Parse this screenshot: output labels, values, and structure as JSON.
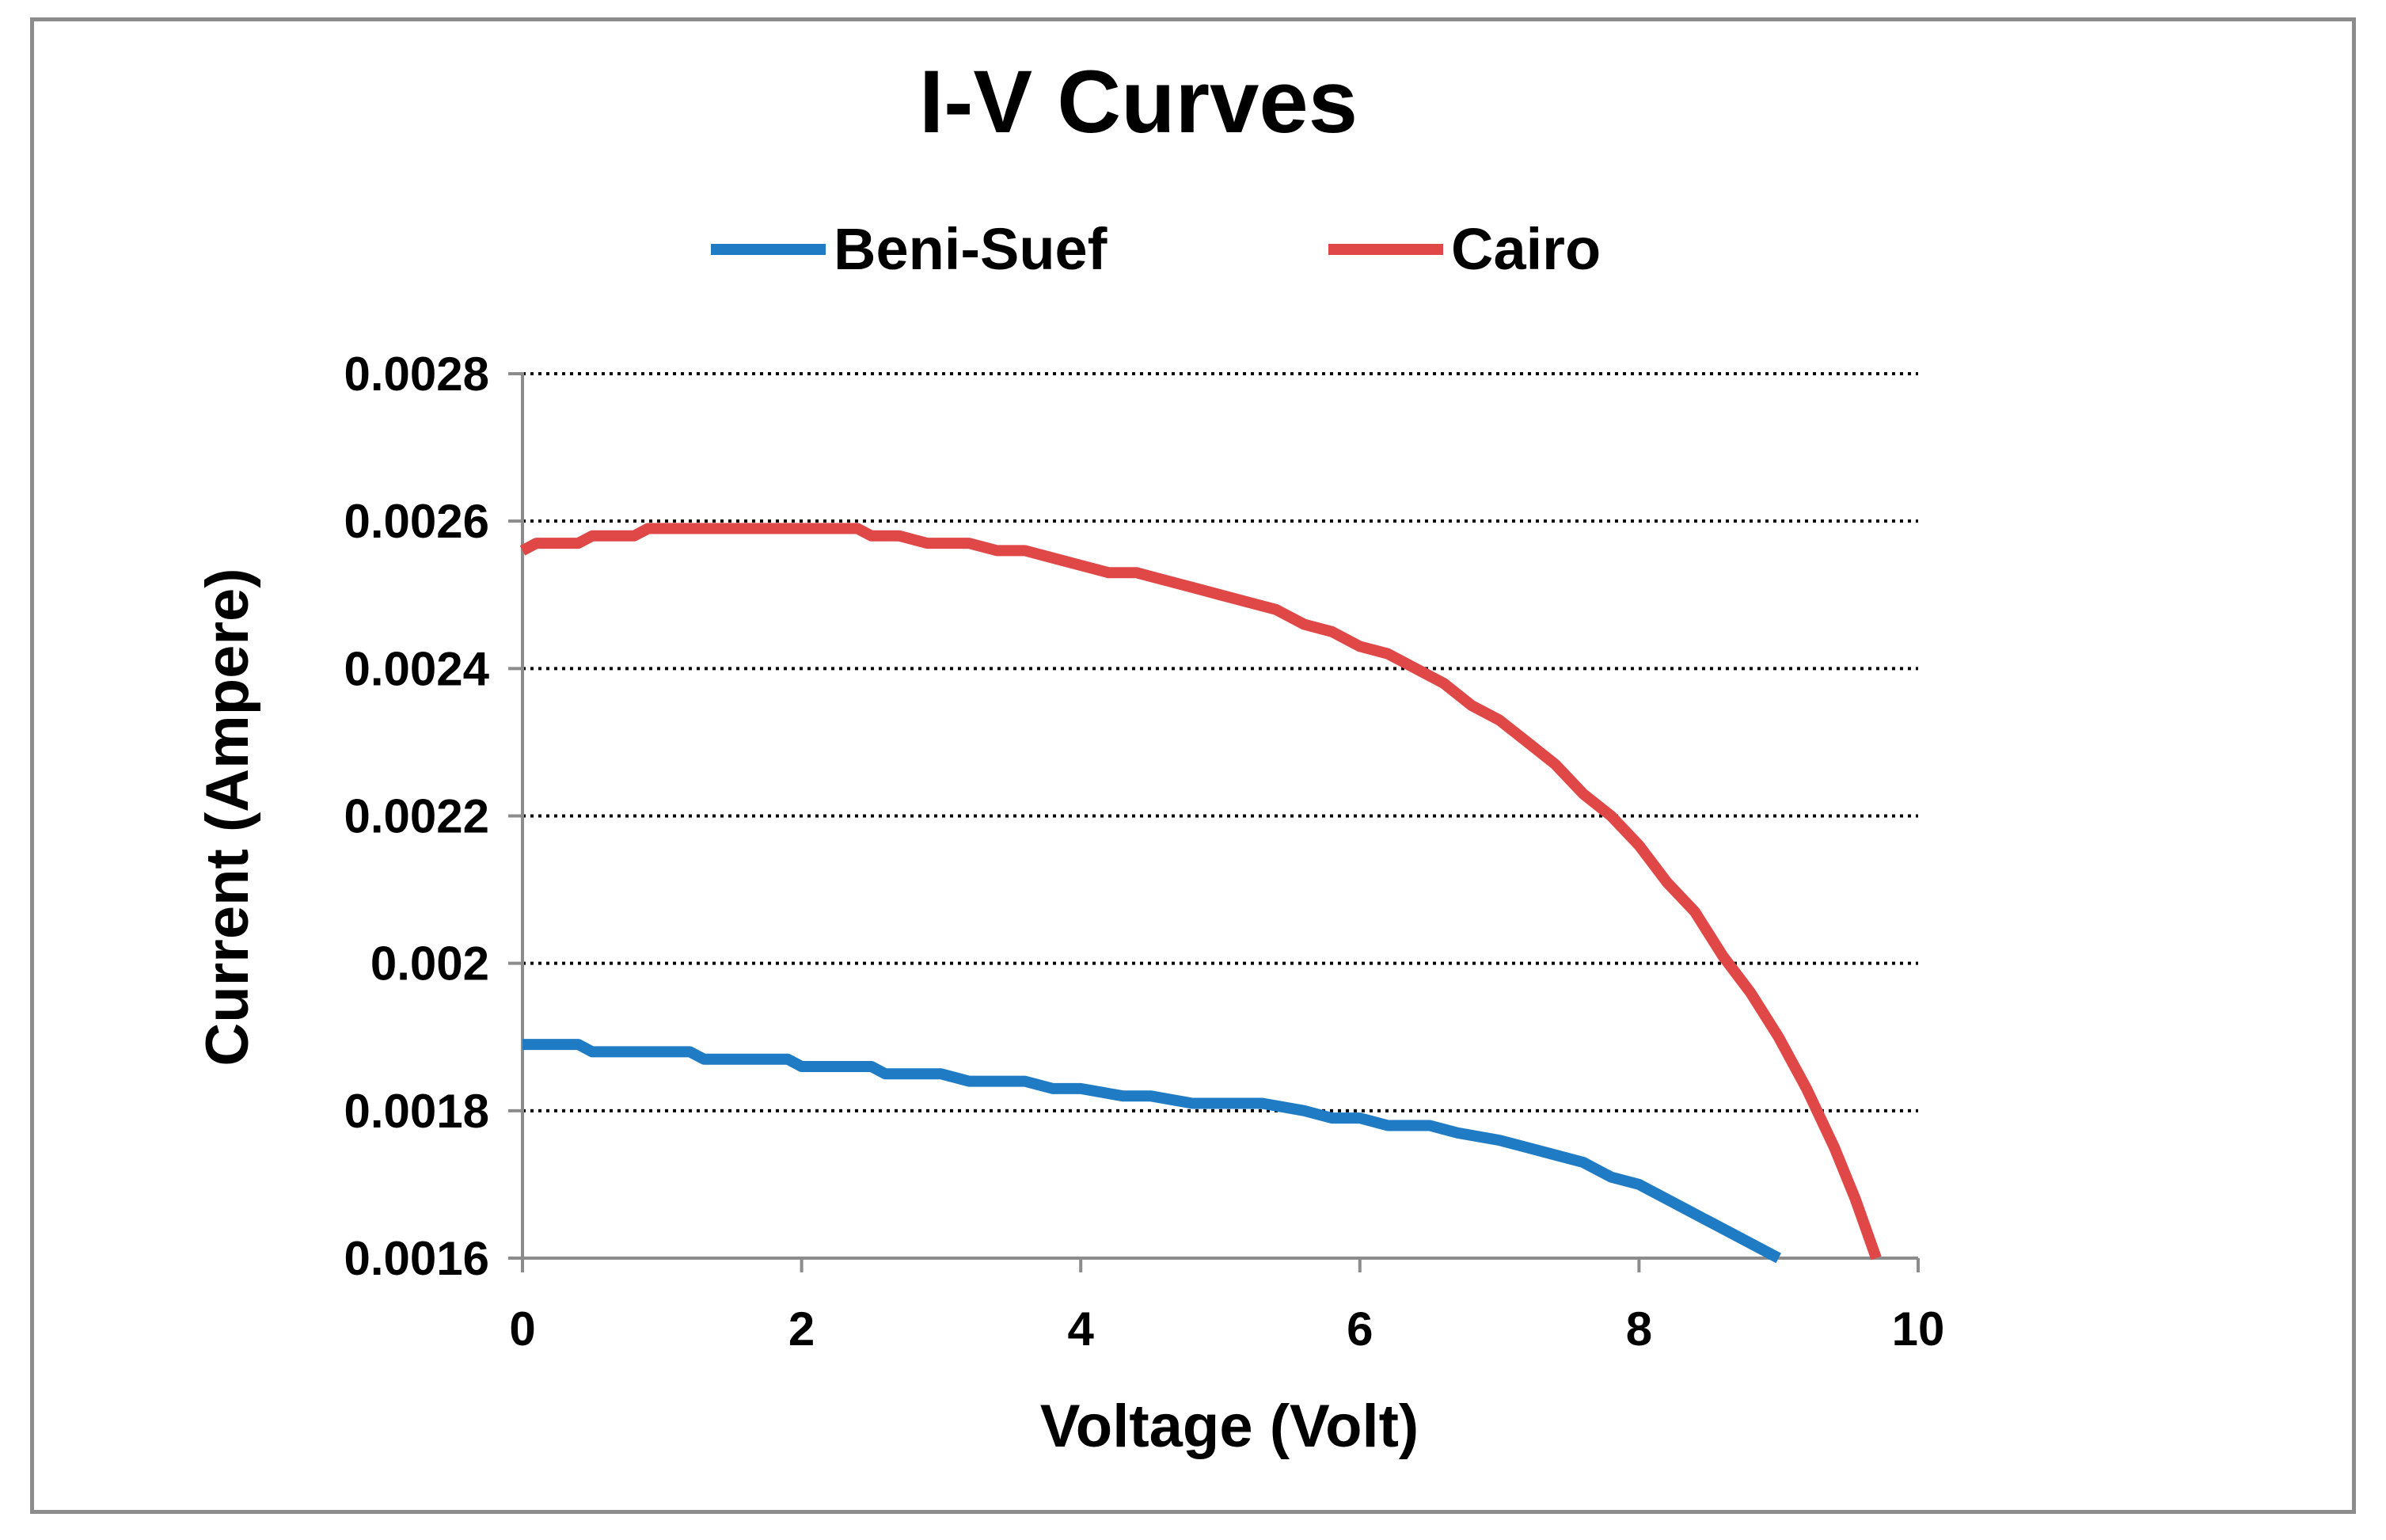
{
  "chart_data": {
    "type": "line",
    "title": "I-V Curves",
    "xlabel": "Voltage (Volt)",
    "ylabel": "Current (Ampere)",
    "xlim": [
      0,
      10
    ],
    "ylim": [
      0.0016,
      0.0028
    ],
    "x_ticks": [
      "0",
      "2",
      "4",
      "6",
      "8",
      "10"
    ],
    "y_ticks": [
      "0.0016",
      "0.0018",
      "0.002",
      "0.0022",
      "0.0024",
      "0.0026",
      "0.0028"
    ],
    "grid": "horizontal dotted",
    "legend_position": "top",
    "series": [
      {
        "name": "Beni-Suef",
        "color": "#1f7cc4",
        "x": [
          0,
          0.2,
          0.4,
          0.5,
          0.8,
          1.2,
          1.3,
          1.6,
          1.9,
          2.0,
          2.2,
          2.5,
          2.6,
          3.0,
          3.2,
          3.3,
          3.6,
          3.8,
          4.0,
          4.3,
          4.5,
          4.8,
          5.0,
          5.3,
          5.6,
          5.8,
          6.0,
          6.2,
          6.5,
          6.7,
          7.0,
          7.2,
          7.4,
          7.6,
          7.8,
          8.0,
          8.5,
          9.0
        ],
        "y": [
          0.00189,
          0.00189,
          0.00189,
          0.00188,
          0.00188,
          0.00188,
          0.00187,
          0.00187,
          0.00187,
          0.00186,
          0.00186,
          0.00186,
          0.00185,
          0.00185,
          0.00184,
          0.00184,
          0.00184,
          0.00183,
          0.00183,
          0.00182,
          0.00182,
          0.00181,
          0.00181,
          0.00181,
          0.0018,
          0.00179,
          0.00179,
          0.00178,
          0.00178,
          0.00177,
          0.00176,
          0.00175,
          0.00174,
          0.00173,
          0.00171,
          0.0017,
          0.00165,
          0.0016
        ]
      },
      {
        "name": "Cairo",
        "color": "#e04848",
        "x": [
          0,
          0.1,
          0.3,
          0.4,
          0.5,
          0.8,
          0.9,
          1.2,
          1.6,
          2.0,
          2.4,
          2.5,
          2.7,
          2.9,
          3.0,
          3.2,
          3.4,
          3.6,
          3.8,
          4.0,
          4.2,
          4.4,
          4.6,
          4.8,
          5.0,
          5.2,
          5.4,
          5.6,
          5.8,
          6.0,
          6.2,
          6.4,
          6.6,
          6.8,
          7.0,
          7.2,
          7.4,
          7.6,
          7.8,
          8.0,
          8.2,
          8.4,
          8.6,
          8.8,
          9.0,
          9.2,
          9.4,
          9.55,
          9.7
        ],
        "y": [
          0.00256,
          0.00257,
          0.00257,
          0.00257,
          0.00258,
          0.00258,
          0.00259,
          0.00259,
          0.00259,
          0.00259,
          0.00259,
          0.00258,
          0.00258,
          0.00257,
          0.00257,
          0.00257,
          0.00256,
          0.00256,
          0.00255,
          0.00254,
          0.00253,
          0.00253,
          0.00252,
          0.00251,
          0.0025,
          0.00249,
          0.00248,
          0.00246,
          0.00245,
          0.00243,
          0.00242,
          0.0024,
          0.00238,
          0.00235,
          0.00233,
          0.0023,
          0.00227,
          0.00223,
          0.0022,
          0.00216,
          0.00211,
          0.00207,
          0.00201,
          0.00196,
          0.0019,
          0.00183,
          0.00175,
          0.00168,
          0.0016
        ]
      }
    ]
  }
}
